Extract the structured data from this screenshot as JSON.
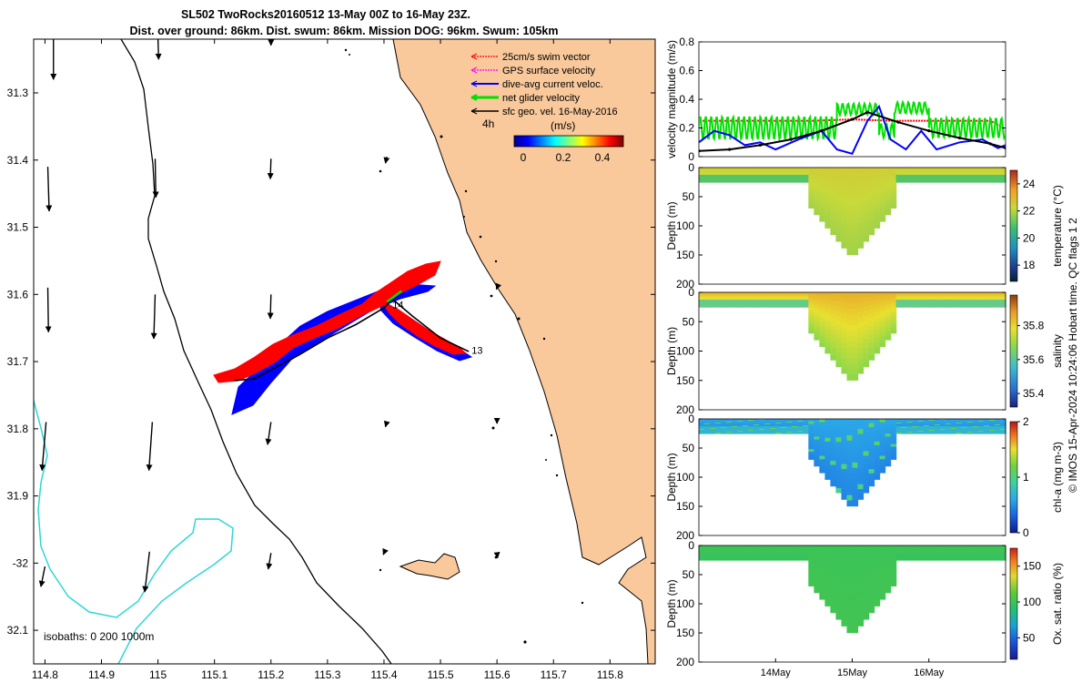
{
  "figure": {
    "title_line1": "SL502 TwoRocks20160512 13-May 00Z to 16-May 23Z.",
    "title_line2": "Dist. over ground: 86km. Dist. swum: 86km. Mission DOG: 96km. Swum: 105km",
    "credit": "© IMOS 15-Apr-2024 10:24:06 Hobart time. QC flags 1  2"
  },
  "colors": {
    "land": "#f9c99b",
    "ocean": "#ffffff",
    "coast": "#000000",
    "isobath_200": "#000000",
    "isobath_1000": "#2fd6d6",
    "swim": "#ff0000",
    "gps": "#ff00ff",
    "dive_avg": "#0000ff",
    "net": "#00e000",
    "geo": "#000000"
  },
  "chart_data": [
    {
      "id": "map",
      "type": "scatter",
      "xlim": [
        114.78,
        115.88
      ],
      "ylim": [
        -32.15,
        -31.22
      ],
      "xticks": [
        114.8,
        114.9,
        115,
        115.1,
        115.2,
        115.3,
        115.4,
        115.5,
        115.6,
        115.7,
        115.8
      ],
      "xtick_labels": [
        "114.8",
        "114.9",
        "115",
        "115.1",
        "115.2",
        "115.3",
        "115.4",
        "115.5",
        "115.6",
        "115.7",
        "115.8"
      ],
      "yticks": [
        -31.3,
        -31.4,
        -31.5,
        -31.6,
        -31.7,
        -31.8,
        -31.9,
        -32.0,
        -32.1
      ],
      "ytick_labels": [
        "31.3",
        "31.4",
        "31.5",
        "31.6",
        "31.7",
        "31.8",
        "31.9",
        "-32",
        "32.1"
      ],
      "legend": {
        "placement": "top-right",
        "entries": [
          {
            "label": "25cm/s swim vector",
            "color_key": "swim"
          },
          {
            "label": "GPS surface velocity",
            "color_key": "gps"
          },
          {
            "label": "dive-avg current veloc.",
            "color_key": "dive_avg"
          },
          {
            "label": "net glider velocity",
            "color_key": "net"
          },
          {
            "label": "sfc geo. vel. 16-May-2016",
            "color_key": "geo"
          }
        ]
      },
      "time_label": "4h",
      "colorbar": {
        "label": "(m/s)",
        "ticks": [
          "0",
          "0.2",
          "0.4"
        ],
        "range": [
          0,
          0.5
        ]
      },
      "isobath_label": "isobaths: 0   200  1000m",
      "day_labels": [
        {
          "text": "14",
          "lon": 115.415,
          "lat": -31.615
        },
        {
          "text": "13",
          "lon": 115.555,
          "lat": -31.683
        }
      ],
      "glider_track": [
        [
          115.135,
          -31.728
        ],
        [
          115.17,
          -31.726
        ],
        [
          115.205,
          -31.71
        ],
        [
          115.25,
          -31.69
        ],
        [
          115.3,
          -31.665
        ],
        [
          115.35,
          -31.645
        ],
        [
          115.4,
          -31.62
        ],
        [
          115.415,
          -31.607
        ],
        [
          115.45,
          -31.632
        ],
        [
          115.5,
          -31.665
        ],
        [
          115.55,
          -31.685
        ]
      ],
      "geo_vectors": [
        {
          "lon": 114.815,
          "lat": -31.22,
          "u": 0.0,
          "v": -0.5
        },
        {
          "lon": 114.805,
          "lat": -31.41,
          "u": 0.02,
          "v": -0.55
        },
        {
          "lon": 114.805,
          "lat": -31.59,
          "u": 0.01,
          "v": -0.55
        },
        {
          "lon": 114.802,
          "lat": -31.79,
          "u": -0.06,
          "v": -0.6
        },
        {
          "lon": 114.8,
          "lat": -32.005,
          "u": -0.06,
          "v": -0.25
        },
        {
          "lon": 115.0,
          "lat": -31.22,
          "u": 0.01,
          "v": -0.25
        },
        {
          "lon": 114.995,
          "lat": -31.398,
          "u": 0.01,
          "v": -0.48
        },
        {
          "lon": 114.995,
          "lat": -31.6,
          "u": -0.02,
          "v": -0.55
        },
        {
          "lon": 114.99,
          "lat": -31.79,
          "u": -0.05,
          "v": -0.6
        },
        {
          "lon": 114.985,
          "lat": -31.983,
          "u": -0.07,
          "v": -0.5
        },
        {
          "lon": 115.2,
          "lat": -31.21,
          "u": 0.0,
          "v": -0.16
        },
        {
          "lon": 115.2,
          "lat": -31.398,
          "u": -0.01,
          "v": -0.25
        },
        {
          "lon": 115.2,
          "lat": -31.6,
          "u": -0.01,
          "v": -0.3
        },
        {
          "lon": 115.2,
          "lat": -31.79,
          "u": -0.05,
          "v": -0.28
        },
        {
          "lon": 115.2,
          "lat": -31.985,
          "u": -0.04,
          "v": -0.2
        },
        {
          "lon": 115.405,
          "lat": -31.395,
          "u": -0.02,
          "v": -0.08
        },
        {
          "lon": 115.405,
          "lat": -31.79,
          "u": -0.02,
          "v": -0.06
        },
        {
          "lon": 115.4,
          "lat": -31.985,
          "u": -0.01,
          "v": -0.02
        },
        {
          "lon": 115.6,
          "lat": -31.59,
          "u": -0.01,
          "v": -0.02
        },
        {
          "lon": 115.6,
          "lat": -31.785,
          "u": 0.0,
          "v": -0.06
        },
        {
          "lon": 115.6,
          "lat": -31.985,
          "u": 0.01,
          "v": -0.06
        }
      ]
    },
    {
      "id": "velocity",
      "type": "line",
      "ylabel": "velocity magnitude (m/s)",
      "ylim": [
        0,
        0.8
      ],
      "yticks": [
        0,
        0.2,
        0.4,
        0.6,
        0.8
      ],
      "ytick_labels": [
        "0",
        "0.2",
        "0.4",
        "0.6",
        "0.8"
      ],
      "xlim": [
        13.0,
        17.0
      ],
      "xticks": [
        14,
        15,
        16
      ],
      "xtick_labels": [
        "14May",
        "15May",
        "16May"
      ],
      "series": [
        {
          "color_key": "swim",
          "style": "dotted",
          "x": [
            13.05,
            13.8,
            14.5,
            15.0,
            15.5,
            16.2,
            16.8,
            16.98
          ],
          "y": [
            0.25,
            0.25,
            0.25,
            0.26,
            0.25,
            0.25,
            0.25,
            0.2
          ]
        },
        {
          "color_key": "dive_avg",
          "style": "solid",
          "x": [
            13.0,
            13.2,
            13.4,
            13.6,
            13.8,
            14.0,
            14.3,
            14.6,
            14.8,
            15.0,
            15.2,
            15.35,
            15.5,
            15.7,
            15.9,
            16.1,
            16.4,
            16.7,
            16.9,
            17.0
          ],
          "y": [
            0.1,
            0.18,
            0.15,
            0.08,
            0.1,
            0.05,
            0.12,
            0.18,
            0.05,
            0.02,
            0.25,
            0.35,
            0.12,
            0.05,
            0.18,
            0.05,
            0.1,
            0.12,
            0.06,
            0.08
          ]
        },
        {
          "color_key": "geo",
          "style": "solid-marked",
          "x": [
            13.0,
            13.4,
            13.8,
            14.2,
            14.6,
            15.0,
            15.2,
            15.6,
            16.0,
            16.4,
            16.8,
            17.0
          ],
          "y": [
            0.04,
            0.05,
            0.08,
            0.12,
            0.18,
            0.26,
            0.31,
            0.24,
            0.18,
            0.13,
            0.09,
            0.06
          ]
        }
      ],
      "net_oscillation": {
        "color_key": "net",
        "segments": [
          {
            "x_start": 13.0,
            "x_end": 14.8,
            "base": 0.2,
            "amp": 0.08
          },
          {
            "x_start": 14.8,
            "x_end": 15.35,
            "base": 0.33,
            "amp": 0.04
          },
          {
            "x_start": 15.35,
            "x_end": 15.55,
            "base": 0.18,
            "amp": 0.05
          },
          {
            "x_start": 15.55,
            "x_end": 16.0,
            "base": 0.34,
            "amp": 0.04
          },
          {
            "x_start": 16.0,
            "x_end": 17.0,
            "base": 0.2,
            "amp": 0.07
          }
        ]
      }
    },
    {
      "id": "temperature",
      "type": "heatmap",
      "ylabel": "Depth (m)",
      "ylim": [
        0,
        200
      ],
      "yticks": [
        0,
        50,
        100,
        150,
        200
      ],
      "ytick_labels": [
        "0",
        "50",
        "100",
        "150",
        "200"
      ],
      "colorbar_label": "temperature (°C)",
      "colorbar_range": [
        16.8,
        25
      ],
      "colorbar_ticks": [
        "18",
        "20",
        "22",
        "24"
      ],
      "colorbar_tick_values": [
        18,
        20,
        22,
        24
      ],
      "surface_value": 22.5,
      "deep_value": 21.8,
      "shallow_edge_value": 21.0,
      "max_depth_flanks": 25,
      "max_depth_center": 155
    },
    {
      "id": "salinity",
      "type": "heatmap",
      "ylabel": "Depth (m)",
      "ylim": [
        0,
        200
      ],
      "yticks": [
        0,
        50,
        100,
        150,
        200
      ],
      "ytick_labels": [
        "0",
        "50",
        "100",
        "150",
        "200"
      ],
      "colorbar_label": "salinity",
      "colorbar_range": [
        35.32,
        35.98
      ],
      "colorbar_ticks": [
        "35.4",
        "35.6",
        "35.8"
      ],
      "colorbar_tick_values": [
        35.4,
        35.6,
        35.8
      ],
      "surface_value": 35.85,
      "deep_value": 35.68,
      "shallow_edge_value": 35.62,
      "max_depth_flanks": 25,
      "max_depth_center": 155
    },
    {
      "id": "chla",
      "type": "heatmap",
      "ylabel": "Depth (m)",
      "ylim": [
        0,
        200
      ],
      "yticks": [
        0,
        50,
        100,
        150,
        200
      ],
      "ytick_labels": [
        "0",
        "50",
        "100",
        "150",
        "200"
      ],
      "colorbar_label": "chl-a (mg m-3)",
      "colorbar_range": [
        0,
        2
      ],
      "colorbar_ticks": [
        "0",
        "1",
        "2"
      ],
      "colorbar_tick_values": [
        0,
        1,
        2
      ],
      "surface_value": 0.6,
      "deep_value": 0.45,
      "shallow_edge_value": 0.7,
      "max_depth_flanks": 25,
      "max_depth_center": 155
    },
    {
      "id": "oxygen",
      "type": "heatmap",
      "ylabel": "Depth (m)",
      "ylim": [
        0,
        200
      ],
      "yticks": [
        0,
        50,
        100,
        150,
        200
      ],
      "ytick_labels": [
        "0",
        "50",
        "100",
        "150",
        "200"
      ],
      "colorbar_label": "Ox. sat. ratio (%)",
      "colorbar_range": [
        20,
        175
      ],
      "colorbar_ticks": [
        "50",
        "100",
        "150"
      ],
      "colorbar_tick_values": [
        50,
        100,
        150
      ],
      "surface_value": 100,
      "deep_value": 102,
      "shallow_edge_value": 98,
      "max_depth_flanks": 25,
      "max_depth_center": 155,
      "xticks": [
        14,
        15,
        16
      ],
      "xtick_labels": [
        "14May",
        "15May",
        "16May"
      ]
    }
  ]
}
